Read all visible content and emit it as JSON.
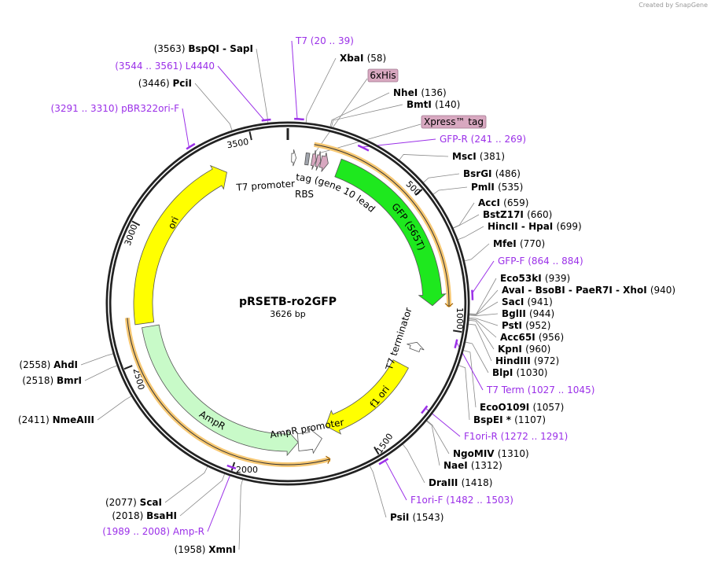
{
  "credit": "Created by SnapGene",
  "plasmid": {
    "name": "pRSETB-ro2GFP",
    "size_label": "3626 bp",
    "length": 3626
  },
  "ticks": [
    "500",
    "1000",
    "1500",
    "2000",
    "2500",
    "3000",
    "3500"
  ],
  "colors": {
    "primer": "#9b30e8",
    "gfp": "#1ee81e",
    "yellow": "#ffff00",
    "ampr": "#c8fac8",
    "orf_rim": "#f7c873",
    "tag": "#d8a8c0",
    "rbs": "#a0a4ac"
  },
  "features": [
    {
      "name": "GFP (S65T)",
      "start": 205,
      "end": 915,
      "dir": 1,
      "color": "#1ee81e"
    },
    {
      "name": "ori",
      "start": 2640,
      "end": 3375,
      "dir": 1,
      "color": "#ffff00"
    },
    {
      "name": "f1 ori",
      "start": 1190,
      "end": 1640,
      "dir": 1,
      "color": "#ffff00"
    },
    {
      "name": "AmpR",
      "start": 1770,
      "end": 2625,
      "dir": -1,
      "color": "#c8fac8"
    },
    {
      "name": "AmpR promoter",
      "start": 1670,
      "end": 1770,
      "dir": -1,
      "color": "#ffffff"
    },
    {
      "name": "T7 terminator",
      "start": 1075,
      "end": 1110,
      "dir": -1,
      "color": "#ffffff"
    },
    {
      "name": "T7 promoter",
      "start": 15,
      "end": 33,
      "dir": 1,
      "color": "#ffffff"
    },
    {
      "name": "RBS",
      "start": 70,
      "end": 84,
      "dir": 0,
      "color": "#a0a4ac"
    },
    {
      "name": "T7 tag (gene 10 leader)",
      "start": 132,
      "end": 162,
      "dir": 1,
      "color": "#d8a8c0"
    }
  ],
  "tags": [
    {
      "name": "6xHis",
      "start": 96,
      "end": 113
    },
    {
      "name": "Xpress™ tag",
      "start": 114,
      "end": 131
    }
  ],
  "enzymes_left": [
    {
      "name": "BspQI  -  SapI",
      "site": 3563,
      "pos": "(3563)"
    },
    {
      "name": "PciI",
      "site": 3446,
      "pos": "(3446)"
    },
    {
      "name": "AhdI",
      "site": 2558,
      "pos": "(2558)"
    },
    {
      "name": "BmrI",
      "site": 2518,
      "pos": "(2518)"
    },
    {
      "name": "NmeAIII",
      "site": 2411,
      "pos": "(2411)"
    },
    {
      "name": "ScaI",
      "site": 2077,
      "pos": "(2077)"
    },
    {
      "name": "BsaHI",
      "site": 2018,
      "pos": "(2018)"
    },
    {
      "name": "XmnI",
      "site": 1958,
      "pos": "(1958)"
    }
  ],
  "enzymes_right": [
    {
      "name": "XbaI",
      "site": 58,
      "pos": "(58)"
    },
    {
      "name": "NheI",
      "site": 136,
      "pos": "(136)"
    },
    {
      "name": "BmtI",
      "site": 140,
      "pos": "(140)"
    },
    {
      "name": "MscI",
      "site": 381,
      "pos": "(381)"
    },
    {
      "name": "BsrGI",
      "site": 486,
      "pos": "(486)"
    },
    {
      "name": "PmlI",
      "site": 535,
      "pos": "(535)"
    },
    {
      "name": "AccI",
      "site": 659,
      "pos": "(659)"
    },
    {
      "name": "BstZ17I",
      "site": 660,
      "pos": "(660)"
    },
    {
      "name": "HincII  -  HpaI",
      "site": 699,
      "pos": "(699)"
    },
    {
      "name": "MfeI",
      "site": 770,
      "pos": "(770)"
    },
    {
      "name": "Eco53kI",
      "site": 939,
      "pos": "(939)"
    },
    {
      "name": "AvaI  -  BsoBI  -  PaeR7I  -  XhoI",
      "site": 940,
      "pos": "(940)"
    },
    {
      "name": "SacI",
      "site": 941,
      "pos": "(941)"
    },
    {
      "name": "BglII",
      "site": 944,
      "pos": "(944)"
    },
    {
      "name": "PstI",
      "site": 952,
      "pos": "(952)"
    },
    {
      "name": "Acc65I",
      "site": 956,
      "pos": "(956)"
    },
    {
      "name": "KpnI",
      "site": 960,
      "pos": "(960)"
    },
    {
      "name": "HindIII",
      "site": 972,
      "pos": "(972)"
    },
    {
      "name": "BlpI",
      "site": 1030,
      "pos": "(1030)"
    },
    {
      "name": "EcoO109I",
      "site": 1057,
      "pos": "(1057)"
    },
    {
      "name": "BspEI *",
      "site": 1107,
      "pos": "(1107)"
    },
    {
      "name": "NgoMIV",
      "site": 1310,
      "pos": "(1310)"
    },
    {
      "name": "NaeI",
      "site": 1312,
      "pos": "(1312)"
    },
    {
      "name": "DraIII",
      "site": 1418,
      "pos": "(1418)"
    },
    {
      "name": "PsiI",
      "site": 1543,
      "pos": "(1543)"
    }
  ],
  "primers": [
    {
      "name": "T7",
      "range": "(20 .. 39)",
      "start": 20,
      "end": 39,
      "dir": 1
    },
    {
      "name": "L4440",
      "range": "(3544 .. 3561)",
      "start": 3544,
      "end": 3561,
      "dir": 1
    },
    {
      "name": "pBR322ori-F",
      "range": "(3291 .. 3310)",
      "start": 3291,
      "end": 3310,
      "dir": 1
    },
    {
      "name": "GFP-R",
      "range": "(241 .. 269)",
      "start": 241,
      "end": 269,
      "dir": -1
    },
    {
      "name": "GFP-F",
      "range": "(864 .. 884)",
      "start": 864,
      "end": 884,
      "dir": 1
    },
    {
      "name": "T7 Term",
      "range": "(1027 .. 1045)",
      "start": 1027,
      "end": 1045,
      "dir": -1
    },
    {
      "name": "F1ori-R",
      "range": "(1272 .. 1291)",
      "start": 1272,
      "end": 1291,
      "dir": -1
    },
    {
      "name": "F1ori-F",
      "range": "(1482 .. 1503)",
      "start": 1482,
      "end": 1503,
      "dir": 1
    },
    {
      "name": "Amp-R",
      "range": "(1989 .. 2008)",
      "start": 1989,
      "end": 2008,
      "dir": -1
    }
  ]
}
